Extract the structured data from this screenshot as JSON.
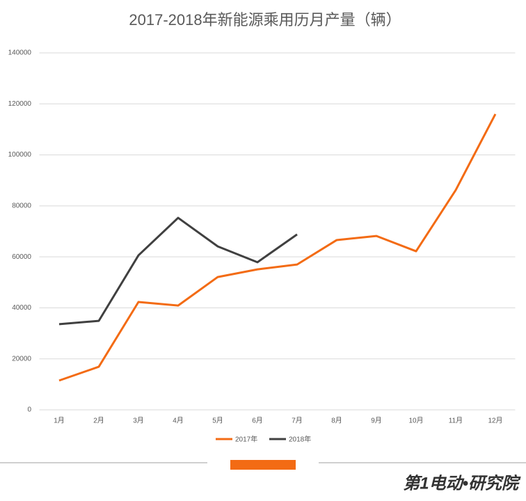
{
  "chart_data": {
    "type": "line",
    "title": "2017-2018年新能源乘用历月产量（辆）",
    "categories": [
      "1月",
      "2月",
      "3月",
      "4月",
      "5月",
      "6月",
      "7月",
      "8月",
      "9月",
      "10月",
      "11月",
      "12月"
    ],
    "series": [
      {
        "name": "2017年",
        "color": "#f36b14",
        "values": [
          11500,
          16900,
          42300,
          40900,
          52100,
          55100,
          57000,
          66600,
          68200,
          62200,
          86200,
          116000
        ]
      },
      {
        "name": "2018年",
        "color": "#404040",
        "values": [
          33600,
          34900,
          60600,
          75300,
          64100,
          57900,
          68800,
          null,
          null,
          null,
          null,
          null
        ]
      }
    ],
    "ylim": [
      0,
      140000
    ],
    "yticks": [
      0,
      20000,
      40000,
      60000,
      80000,
      100000,
      120000,
      140000
    ],
    "grid": true,
    "legend": "bottom"
  },
  "footer": {
    "logo": "第1电动•研究院"
  }
}
